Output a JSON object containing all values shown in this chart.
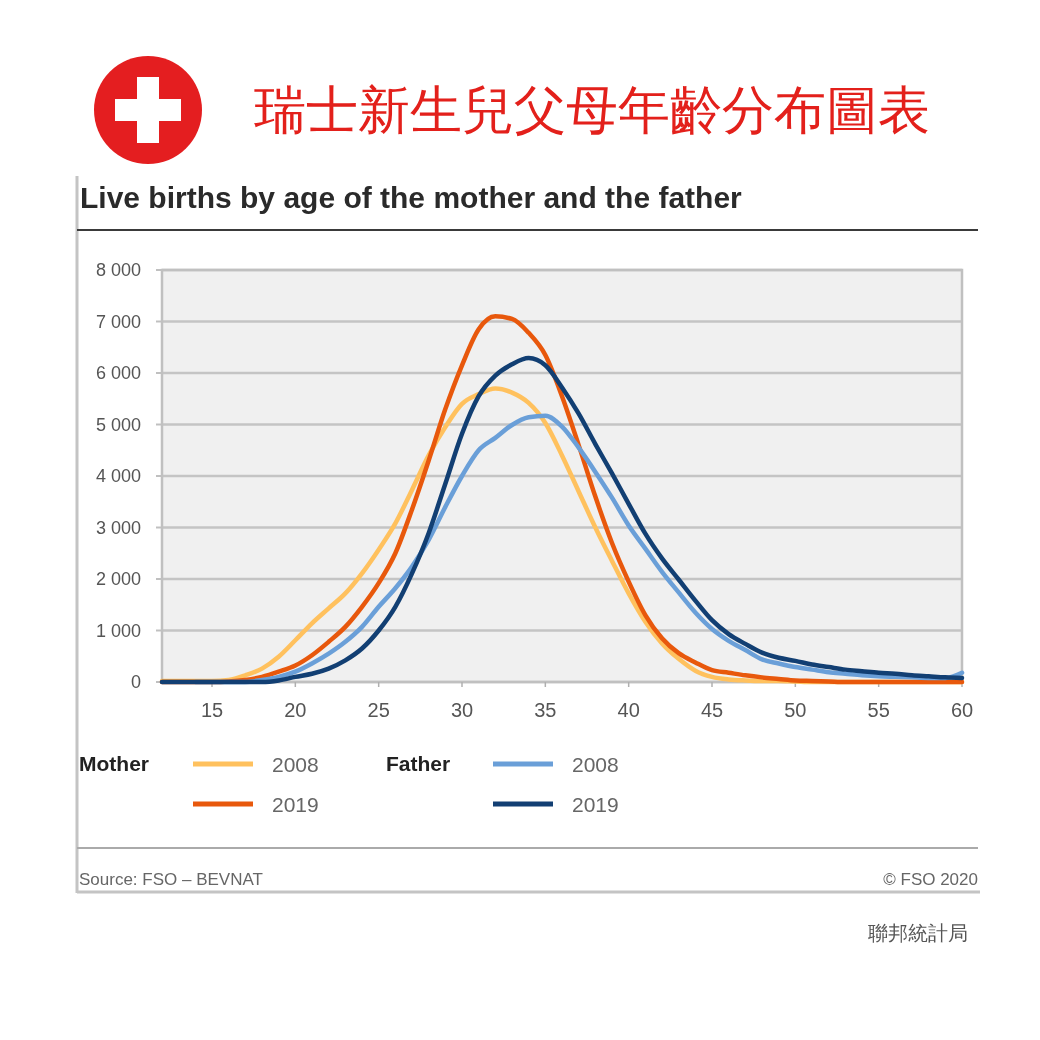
{
  "chart_data": {
    "type": "line",
    "title": "瑞士新生兒父母年齡分布圖表",
    "subtitle": "Live births by age of the mother and the father",
    "legend_title": [
      "Mother",
      "Father"
    ],
    "x": [
      12,
      13,
      14,
      15,
      16,
      17,
      18,
      19,
      20,
      21,
      22,
      23,
      24,
      25,
      26,
      27,
      28,
      29,
      30,
      31,
      32,
      33,
      34,
      35,
      36,
      37,
      38,
      39,
      40,
      41,
      42,
      43,
      44,
      45,
      46,
      47,
      48,
      49,
      50,
      51,
      52,
      53,
      54,
      55,
      56,
      57,
      58,
      59,
      60
    ],
    "series": [
      {
        "name": "2008",
        "color": "#ffc15e",
        "values": [
          20,
          20,
          20,
          20,
          40,
          130,
          260,
          490,
          810,
          1140,
          1430,
          1720,
          2110,
          2570,
          3080,
          3730,
          4400,
          4950,
          5400,
          5590,
          5700,
          5620,
          5420,
          5030,
          4400,
          3700,
          3000,
          2350,
          1720,
          1170,
          750,
          450,
          220,
          100,
          50,
          30,
          20,
          20,
          10,
          0,
          0,
          0,
          0,
          0,
          0,
          0,
          0,
          0,
          0
        ]
      },
      {
        "name": "2019",
        "color": "#e8580c",
        "values": [
          0,
          0,
          0,
          0,
          10,
          40,
          100,
          200,
          320,
          520,
          780,
          1070,
          1460,
          1920,
          2500,
          3350,
          4300,
          5300,
          6150,
          6850,
          7100,
          7050,
          6780,
          6350,
          5550,
          4600,
          3600,
          2700,
          1950,
          1300,
          850,
          560,
          380,
          230,
          180,
          130,
          90,
          60,
          30,
          20,
          10,
          0,
          0,
          0,
          0,
          0,
          0,
          0,
          0
        ]
      },
      {
        "name": "2008",
        "color": "#6a9fd8",
        "values": [
          null,
          null,
          0,
          0,
          0,
          0,
          40,
          100,
          200,
          360,
          550,
          780,
          1070,
          1460,
          1820,
          2240,
          2760,
          3400,
          4000,
          4500,
          4740,
          4990,
          5140,
          5170,
          4960,
          4550,
          4080,
          3580,
          3040,
          2590,
          2140,
          1740,
          1350,
          1030,
          800,
          620,
          440,
          360,
          290,
          240,
          190,
          160,
          130,
          110,
          100,
          90,
          80,
          80,
          180
        ]
      },
      {
        "name": "2019",
        "color": "#123f73",
        "values": [
          0,
          0,
          0,
          0,
          0,
          0,
          0,
          30,
          100,
          160,
          260,
          420,
          650,
          1000,
          1460,
          2110,
          2890,
          3850,
          4820,
          5550,
          5950,
          6170,
          6290,
          6150,
          5720,
          5210,
          4620,
          4050,
          3460,
          2880,
          2400,
          1990,
          1580,
          1200,
          930,
          740,
          570,
          470,
          410,
          340,
          290,
          240,
          210,
          180,
          160,
          130,
          110,
          90,
          80
        ]
      }
    ],
    "xlim": [
      12,
      60
    ],
    "xticks": [
      15,
      20,
      25,
      30,
      35,
      40,
      45,
      50,
      55,
      60
    ],
    "ylim": [
      0,
      8000
    ],
    "yticks": [
      0,
      {
        "value": 1000,
        "label": "1 000"
      },
      {
        "value": 2000,
        "label": "2 000"
      },
      {
        "value": 3000,
        "label": "3 000"
      },
      {
        "value": 4000,
        "label": "4 000"
      },
      {
        "value": 5000,
        "label": "5 000"
      },
      {
        "value": 6000,
        "label": "6 000"
      },
      {
        "value": 7000,
        "label": "7 000"
      },
      {
        "value": 8000,
        "label": "8 000"
      }
    ],
    "grid": "y",
    "legend": "bottom",
    "annotations": [
      "Source: FSO – BEVNAT",
      "© FSO 2020",
      "聯邦統計局"
    ]
  }
}
